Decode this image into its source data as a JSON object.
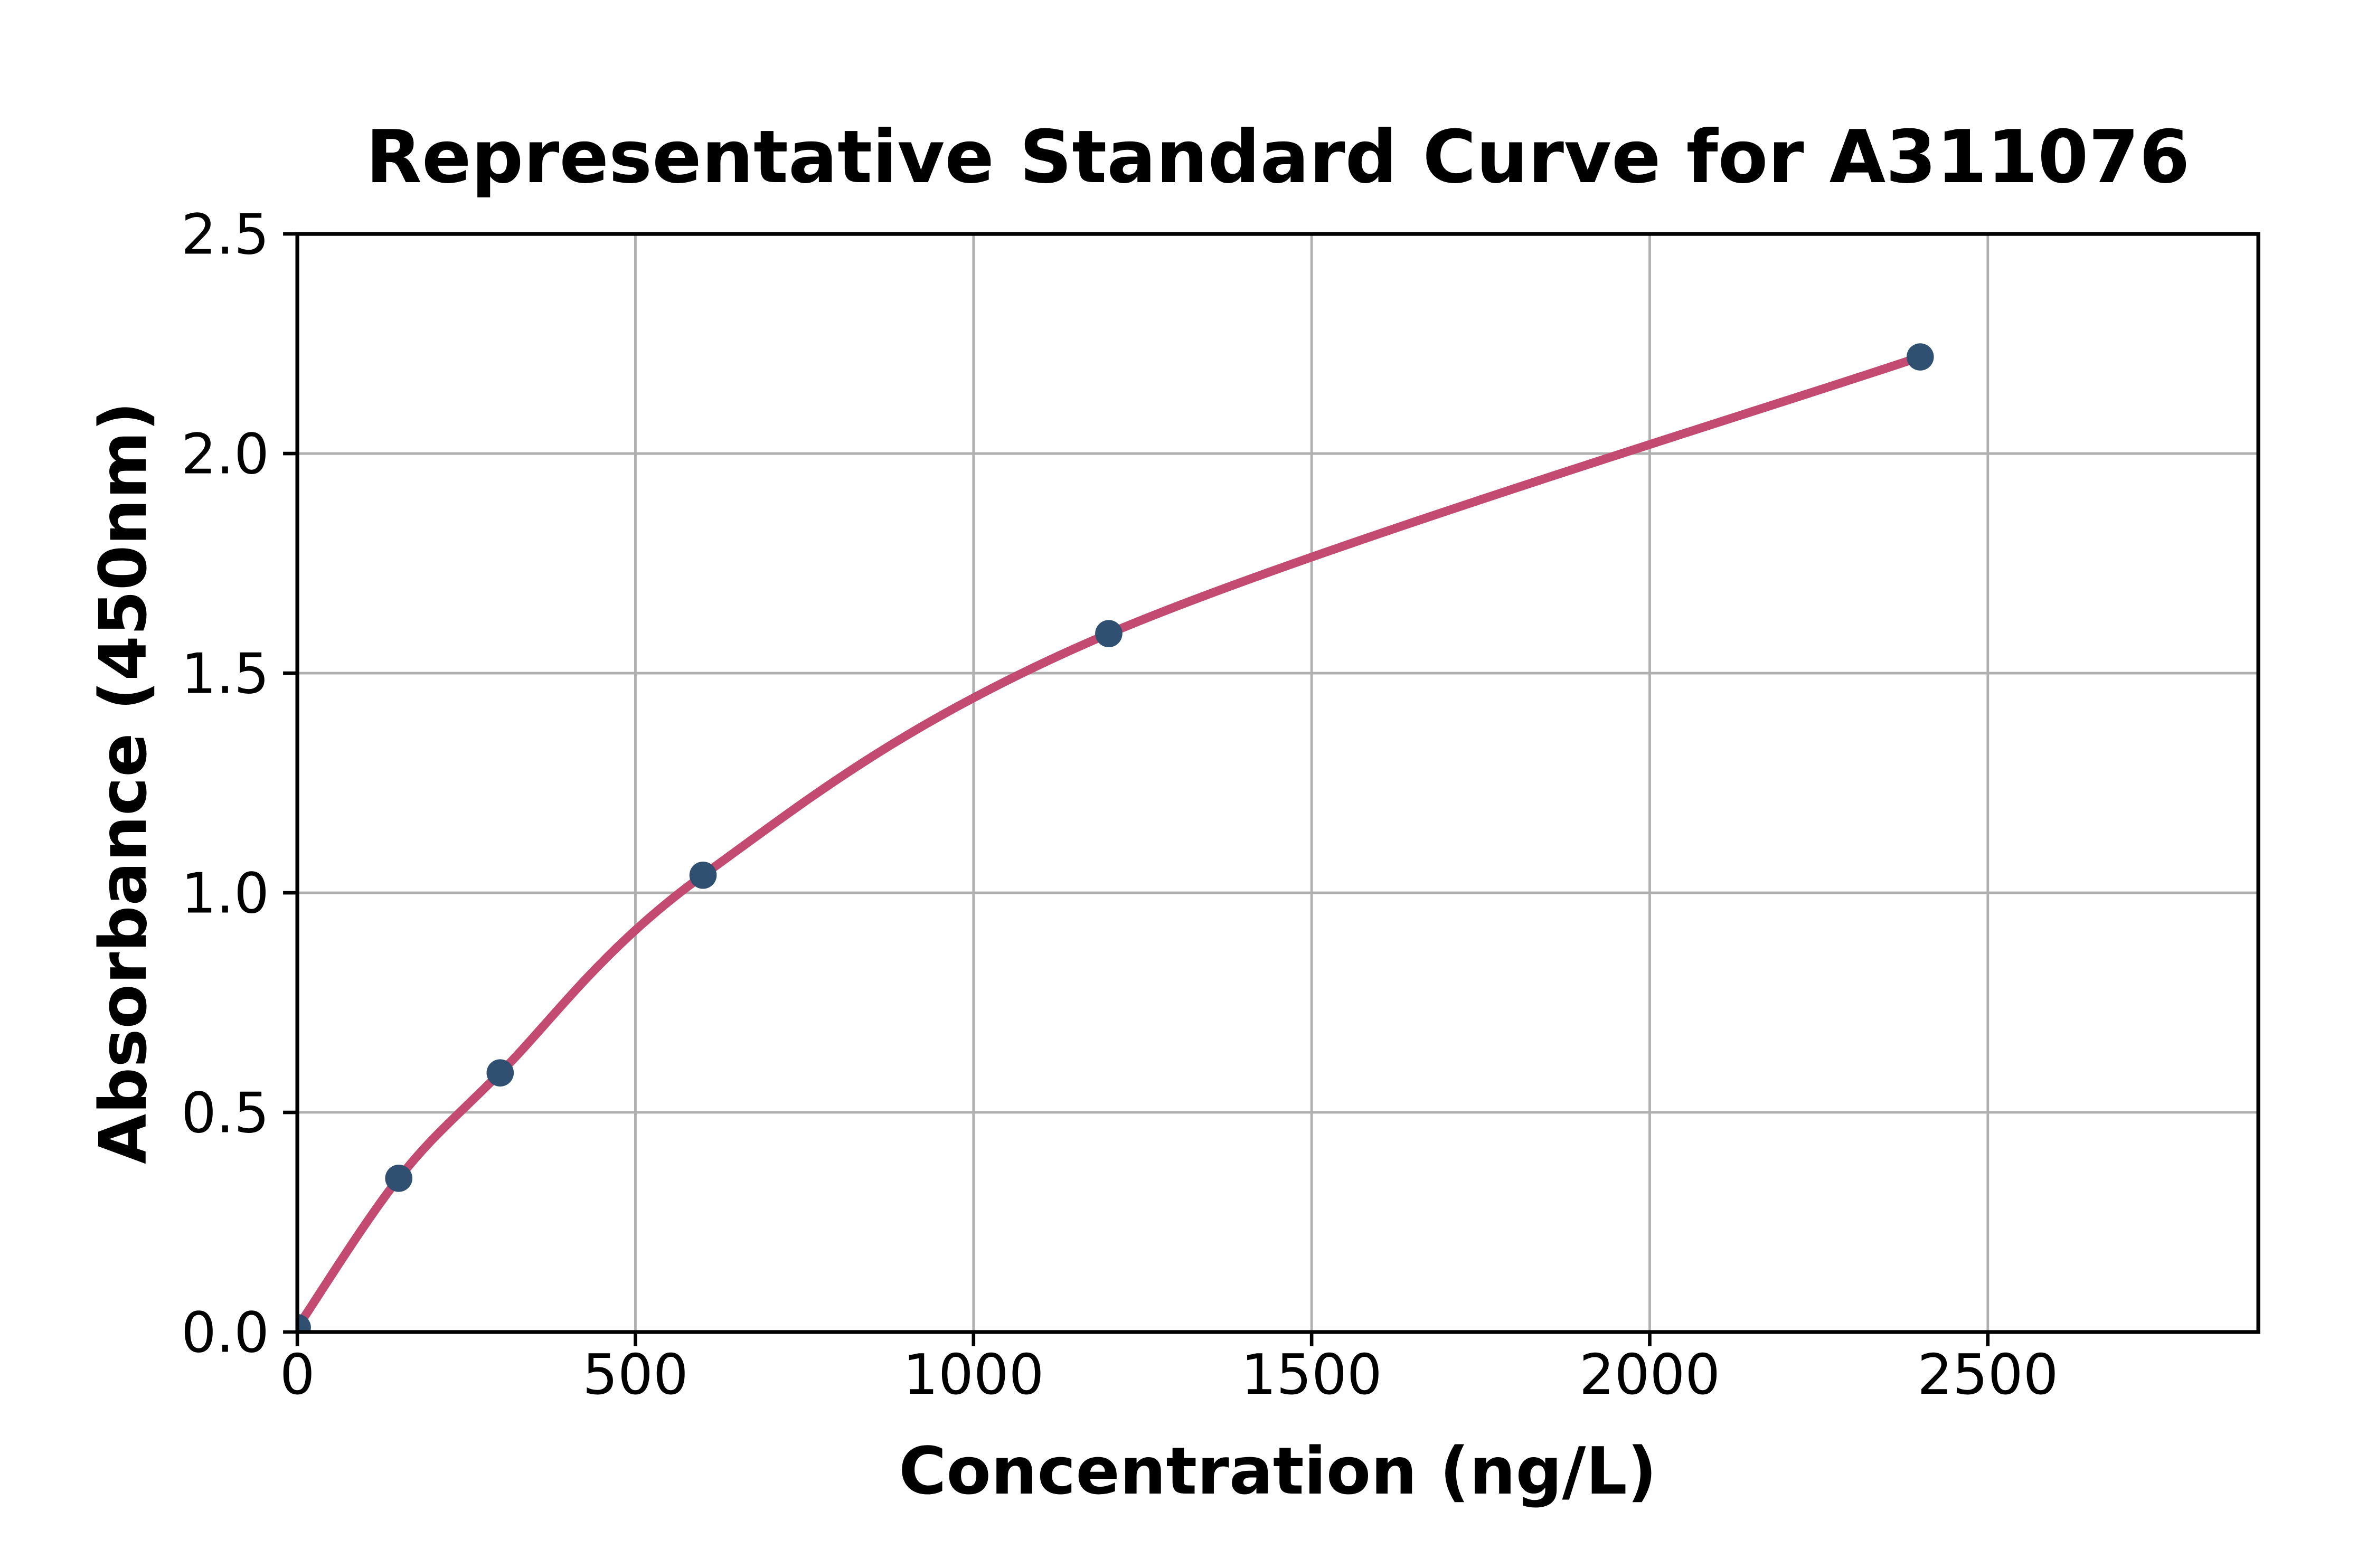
{
  "chart": {
    "title": "Representative Standard Curve for A311076",
    "xlabel": "Concentration (ng/L)",
    "ylabel": "Absorbance (450nm)"
  },
  "chart_data": {
    "type": "scatter",
    "title": "Representative Standard Curve for A311076",
    "xlabel": "Concentration (ng/L)",
    "ylabel": "Absorbance (450nm)",
    "series": [
      {
        "name": "standards",
        "points_x": [
          0,
          150,
          300,
          600,
          1200,
          2400
        ],
        "points_y": [
          0.01,
          0.35,
          0.59,
          1.04,
          1.59,
          2.22
        ]
      }
    ],
    "curve": {
      "description": "smooth fitted curve through the standard points",
      "x_start": 0,
      "x_end": 2400
    },
    "x_ticks": [
      0,
      500,
      1000,
      1500,
      2000,
      2500
    ],
    "x_tick_labels": [
      "0",
      "500",
      "1000",
      "1500",
      "2000",
      "2500"
    ],
    "y_ticks": [
      0,
      0.5,
      1.0,
      1.5,
      2.0,
      2.5
    ],
    "y_tick_labels": [
      "0.0",
      "0.5",
      "1.0",
      "1.5",
      "2.0",
      "2.5"
    ],
    "xlim": [
      0,
      2900
    ],
    "ylim": [
      0,
      2.5
    ],
    "grid": true,
    "legend": false,
    "colors": {
      "curve": "#c34a70",
      "marker": "#2f5070",
      "grid": "#b0b0b0",
      "axis": "#000000",
      "text": "#000000",
      "background": "#ffffff"
    }
  }
}
